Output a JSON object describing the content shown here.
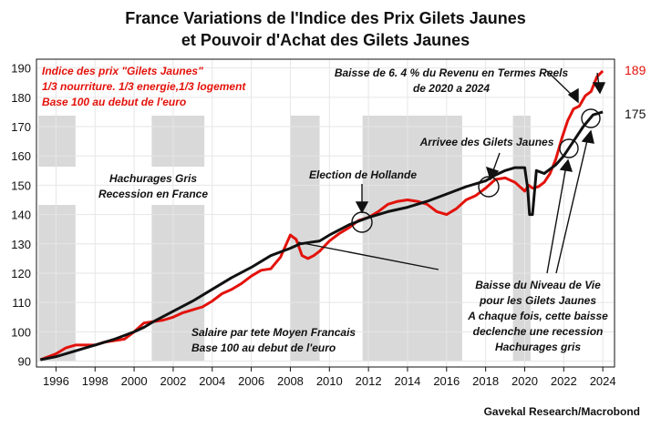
{
  "chart_data": {
    "type": "line",
    "title_line1": "France  Variations de l'Indice des Prix Gilets Jaunes",
    "title_line2": "et Pouvoir d'Achat des Gilets Jaunes",
    "ylim": [
      88,
      193
    ],
    "xlim": [
      1995.0,
      2024.6
    ],
    "y_ticks": [
      90,
      100,
      110,
      120,
      130,
      140,
      150,
      160,
      170,
      180,
      190
    ],
    "x_ticks": [
      1996,
      1998,
      2000,
      2002,
      2004,
      2006,
      2008,
      2010,
      2012,
      2014,
      2016,
      2018,
      2020,
      2022,
      2024
    ],
    "recessions": [
      [
        1995.1,
        1997.0
      ],
      [
        2000.9,
        2003.6
      ],
      [
        2008.0,
        2009.5
      ],
      [
        2011.7,
        2016.8
      ],
      [
        2019.4,
        2020.3
      ]
    ],
    "series": [
      {
        "name": "Indice des prix \"Gilets Jaunes\"",
        "color": "#e3120b",
        "end_label": "189",
        "x": [
          1995.2,
          1996.0,
          1996.5,
          1997.0,
          1997.5,
          1998.0,
          1998.5,
          1999.0,
          1999.5,
          2000.0,
          2000.5,
          2001.0,
          2001.5,
          2002.0,
          2002.5,
          2003.0,
          2003.5,
          2004.0,
          2004.5,
          2005.0,
          2005.5,
          2006.0,
          2006.5,
          2007.0,
          2007.5,
          2008.0,
          2008.3,
          2008.6,
          2008.9,
          2009.2,
          2009.5,
          2010.0,
          2010.5,
          2011.0,
          2011.5,
          2012.0,
          2012.5,
          2013.0,
          2013.5,
          2014.0,
          2014.5,
          2015.0,
          2015.5,
          2016.0,
          2016.5,
          2017.0,
          2017.5,
          2018.0,
          2018.5,
          2019.0,
          2019.5,
          2020.0,
          2020.2,
          2020.4,
          2020.7,
          2021.0,
          2021.3,
          2021.6,
          2021.9,
          2022.2,
          2022.5,
          2022.8,
          2023.1,
          2023.4,
          2023.7,
          2024.0
        ],
        "values": [
          90.5,
          92.5,
          94.5,
          95.5,
          95.5,
          95.5,
          96.5,
          97,
          97.5,
          100,
          103,
          103.5,
          104,
          105,
          106.5,
          107.5,
          108.5,
          110.5,
          113,
          114.5,
          116.5,
          119,
          121,
          121.5,
          125.5,
          133,
          131.5,
          126,
          125,
          126,
          127.5,
          131,
          133.5,
          135.5,
          138,
          139,
          141,
          143.5,
          144.5,
          145,
          144.5,
          143.5,
          141,
          140,
          142,
          145,
          146.5,
          149,
          152,
          152.5,
          151,
          148,
          150,
          149,
          149.5,
          151,
          154,
          159,
          166,
          172,
          176,
          177,
          180.5,
          182,
          187,
          189
        ]
      },
      {
        "name": "Salaire par tete Moyen Francais",
        "color": "#111111",
        "end_label": "175",
        "x": [
          1995.2,
          1996.0,
          1997.0,
          1998.0,
          1999.0,
          2000.0,
          2000.5,
          2001.0,
          2002.0,
          2003.0,
          2004.0,
          2005.0,
          2006.0,
          2007.0,
          2008.0,
          2008.5,
          2009.0,
          2009.5,
          2010.0,
          2011.0,
          2012.0,
          2013.0,
          2014.0,
          2015.0,
          2016.0,
          2017.0,
          2018.0,
          2018.5,
          2019.0,
          2019.5,
          2020.0,
          2020.15,
          2020.25,
          2020.4,
          2020.6,
          2021.0,
          2021.3,
          2021.6,
          2022.0,
          2022.5,
          2023.0,
          2023.5,
          2024.0
        ],
        "values": [
          90.5,
          91.5,
          93.5,
          95.5,
          97.5,
          100,
          101.5,
          103.5,
          107,
          110.5,
          114.5,
          118.5,
          122,
          126,
          128.5,
          130,
          130.5,
          131,
          133,
          136.5,
          139,
          141,
          142.5,
          144.5,
          147,
          149.5,
          151.5,
          153.5,
          155,
          156,
          156,
          149,
          140,
          140,
          155,
          154,
          155.5,
          157,
          160,
          165,
          170,
          174,
          175
        ]
      }
    ],
    "annotations": {
      "legend_red_1": "Indice des prix \"Gilets Jaunes\"",
      "legend_red_2": "1/3 nourriture. 1/3 energie,1/3 logement",
      "legend_red_3": "Base 100 au debut de l'euro",
      "recession_1": "Hachurages Gris",
      "recession_2": "Recession en France",
      "hollande": "Election de Hollande",
      "revenu_1": "Baisse de 6. 4 % du Revenu en Termes Reels",
      "revenu_2": "de 2020  a 2024",
      "arrivee": "Arrivee des Gilets Jaunes",
      "salaire_1": "Salaire par tete Moyen Francais",
      "salaire_2": "Base 100  au debut de l'euro",
      "baisse_1": "Baisse du Niveau de Vie",
      "baisse_2": "pour les Gilets Jaunes",
      "baisse_3": "A chaque fois, cette baisse",
      "baisse_4": "declenche une recession",
      "baisse_5": "Hachurages gris"
    },
    "credit": "Gavekal Research/Macrobond"
  }
}
